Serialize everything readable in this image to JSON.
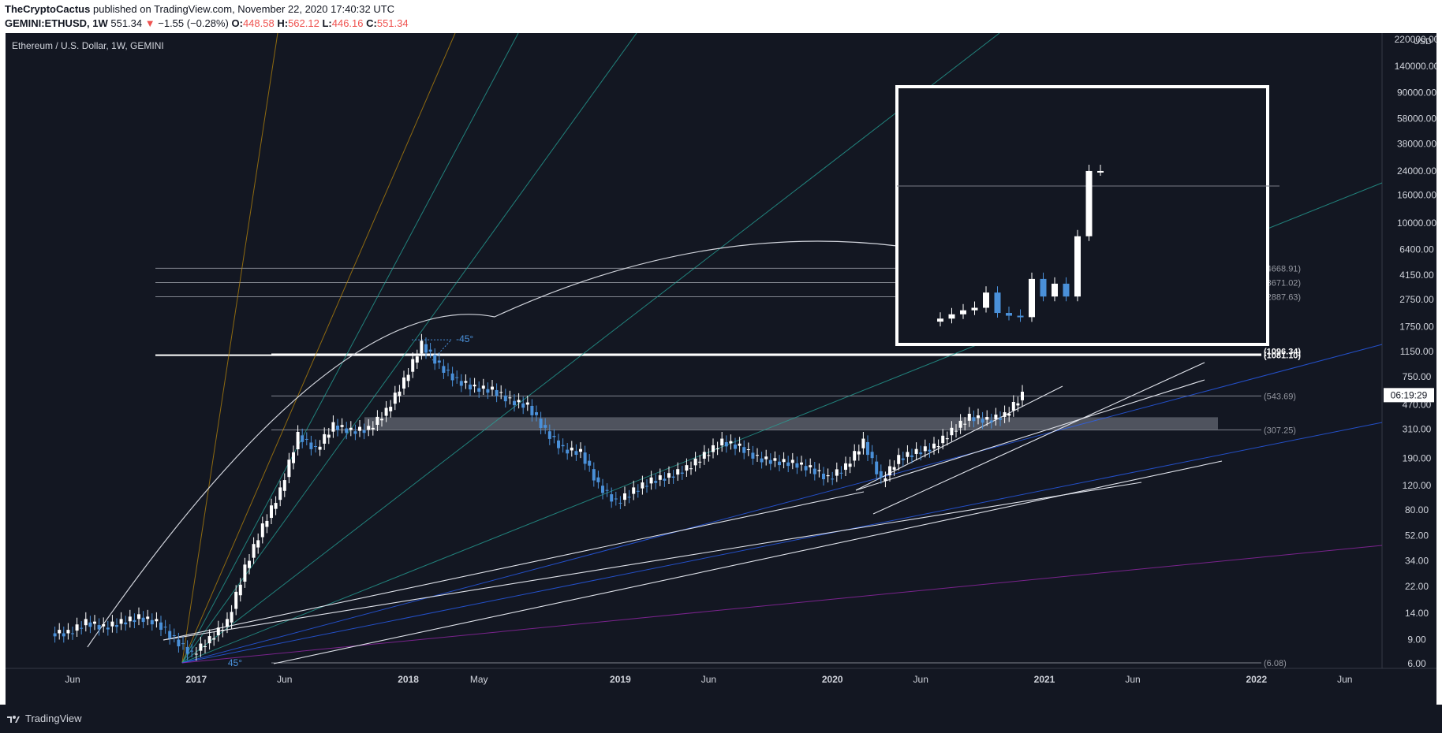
{
  "header": {
    "author": "TheCryptoCactus",
    "published": "published on TradingView.com, November 22, 2020 17:40:32 UTC",
    "symbol": "GEMINI:ETHUSD, 1W",
    "last": "551.34",
    "change": "−1.55 (−0.28%)",
    "o_label": "O:",
    "o": "448.58",
    "h_label": "H:",
    "h": "562.12",
    "l_label": "L:",
    "l": "446.16",
    "c_label": "C:",
    "c": "551.34"
  },
  "colors": {
    "background": "#131722",
    "candle_up": "#ffffff",
    "candle_down": "#4a90d9",
    "red": "#ef5350",
    "fan_orange": "#b8860b",
    "fan_teal": "#26a69a",
    "fan_blue": "#2962ff",
    "fan_purple": "#9c27b0"
  },
  "chart_data": {
    "type": "line",
    "title": "Ethereum / U.S. Dollar, 1W, GEMINI",
    "y_scale": "log",
    "y_unit": "USD",
    "y_ticks": [
      "220000.00",
      "140000.00",
      "90000.00",
      "58000.00",
      "38000.00",
      "24000.00",
      "16000.00",
      "10000.00",
      "6400.00",
      "4150.00",
      "2750.00",
      "1750.00",
      "1150.00",
      "750.00",
      "470.00",
      "310.00",
      "190.00",
      "120.00",
      "80.00",
      "52.00",
      "34.00",
      "22.00",
      "14.00",
      "9.00",
      "6.00"
    ],
    "x_ticks": [
      "Jun",
      "2017",
      "Jun",
      "2018",
      "May",
      "2019",
      "Jun",
      "2020",
      "Jun",
      "2021",
      "Jun",
      "2022",
      "Jun"
    ],
    "last_price_countdown": "06:19:29",
    "horizontal_levels": [
      {
        "value": 4668.91,
        "label": "(4668.91)"
      },
      {
        "value": 3671.02,
        "label": "(3671.02)"
      },
      {
        "value": 2887.63,
        "label": "(2887.63)"
      },
      {
        "value": 1081.1,
        "label": "(1081.10)"
      },
      {
        "value": 1096.34,
        "label": "(1096.34)"
      },
      {
        "value": 543.69,
        "label": "(543.69)"
      },
      {
        "value": 307.25,
        "label": "(307.25)"
      },
      {
        "value": 6.08,
        "label": "(6.08)"
      }
    ],
    "annotations": [
      "-45°",
      "45°"
    ],
    "series": [
      {
        "name": "ETHUSD",
        "x": [
          "2016-05",
          "2016-06",
          "2016-07",
          "2016-08",
          "2016-09",
          "2016-10",
          "2016-11",
          "2016-12",
          "2017-01",
          "2017-02",
          "2017-03",
          "2017-04",
          "2017-05",
          "2017-06",
          "2017-07",
          "2017-08",
          "2017-09",
          "2017-10",
          "2017-11",
          "2017-12",
          "2018-01",
          "2018-02",
          "2018-03",
          "2018-04",
          "2018-05",
          "2018-06",
          "2018-07",
          "2018-08",
          "2018-09",
          "2018-10",
          "2018-11",
          "2018-12",
          "2019-01",
          "2019-02",
          "2019-03",
          "2019-04",
          "2019-05",
          "2019-06",
          "2019-07",
          "2019-08",
          "2019-09",
          "2019-10",
          "2019-11",
          "2019-12",
          "2020-01",
          "2020-02",
          "2020-03",
          "2020-04",
          "2020-05",
          "2020-06",
          "2020-07",
          "2020-08",
          "2020-09",
          "2020-10",
          "2020-11"
        ],
        "close": [
          10,
          12,
          11,
          12,
          13,
          12,
          9,
          7,
          9,
          12,
          30,
          60,
          110,
          280,
          220,
          330,
          300,
          310,
          420,
          700,
          1300,
          900,
          700,
          620,
          600,
          500,
          460,
          300,
          220,
          210,
          120,
          90,
          110,
          130,
          140,
          160,
          200,
          250,
          230,
          190,
          180,
          175,
          160,
          135,
          165,
          250,
          130,
          190,
          210,
          230,
          300,
          380,
          360,
          390,
          551
        ]
      }
    ],
    "inset": {
      "type": "bar",
      "values": [
        2000,
        2150,
        2300,
        2400,
        3100,
        2200,
        2100,
        2050,
        3900,
        2900,
        3600,
        2900,
        8000,
        24000,
        24000
      ]
    }
  }
}
